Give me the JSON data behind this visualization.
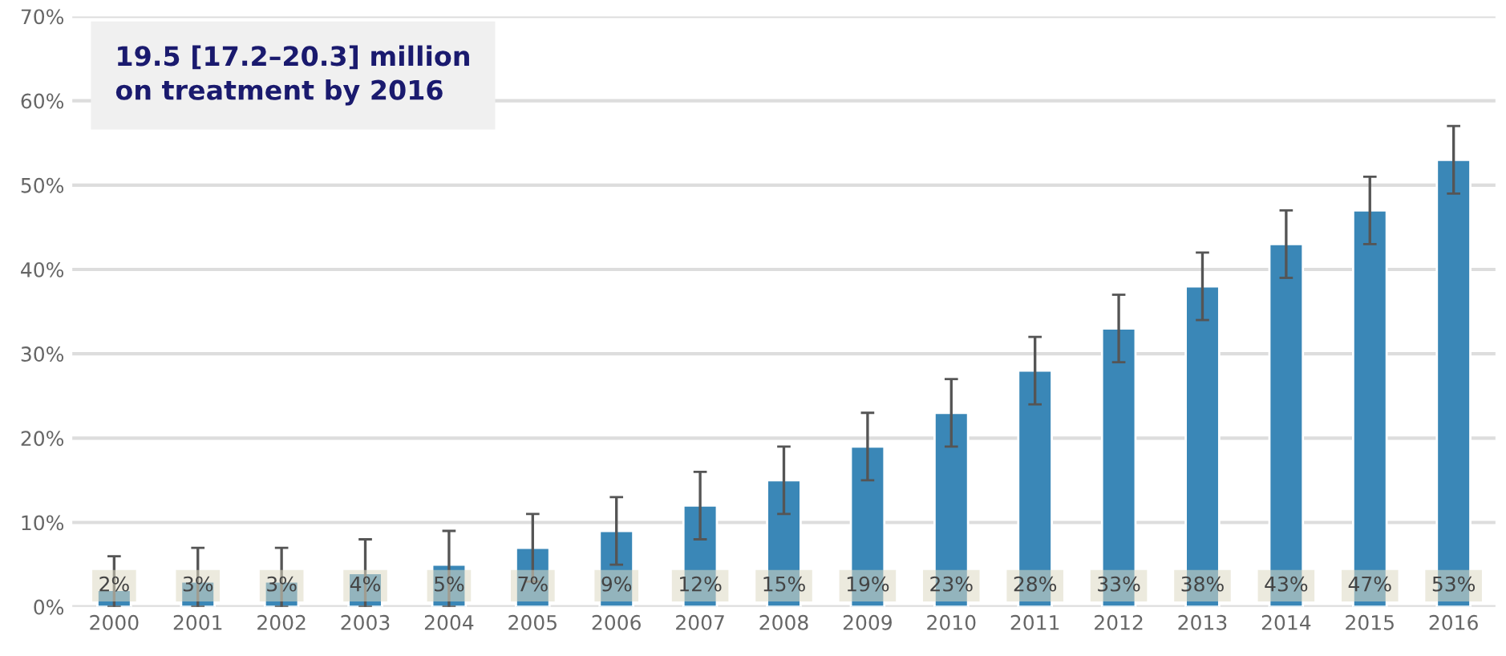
{
  "chart_data": {
    "type": "bar",
    "categories": [
      "2000",
      "2001",
      "2002",
      "2003",
      "2004",
      "2005",
      "2006",
      "2007",
      "2008",
      "2009",
      "2010",
      "2011",
      "2012",
      "2013",
      "2014",
      "2015",
      "2016"
    ],
    "values": [
      2,
      3,
      3,
      4,
      5,
      7,
      9,
      12,
      15,
      19,
      23,
      28,
      33,
      38,
      43,
      47,
      53
    ],
    "value_labels": [
      "2%",
      "3%",
      "3%",
      "4%",
      "5%",
      "7%",
      "9%",
      "12%",
      "15%",
      "19%",
      "23%",
      "28%",
      "33%",
      "38%",
      "43%",
      "47%",
      "53%"
    ],
    "errors": [
      [
        0,
        6
      ],
      [
        0,
        7
      ],
      [
        0,
        7
      ],
      [
        0,
        8
      ],
      [
        0,
        9
      ],
      [
        3,
        11
      ],
      [
        5,
        13
      ],
      [
        8,
        16
      ],
      [
        11,
        19
      ],
      [
        15,
        23
      ],
      [
        19,
        27
      ],
      [
        24,
        32
      ],
      [
        29,
        37
      ],
      [
        34,
        42
      ],
      [
        39,
        47
      ],
      [
        43,
        51
      ],
      [
        49,
        57
      ]
    ],
    "color": "#3a87b7",
    "ylim": [
      0,
      70
    ],
    "yticks": [
      {
        "value": 0,
        "label": "0%"
      },
      {
        "value": 10,
        "label": "10%"
      },
      {
        "value": 20,
        "label": "20%"
      },
      {
        "value": 30,
        "label": "30%"
      },
      {
        "value": 40,
        "label": "40%"
      },
      {
        "value": 50,
        "label": "50%"
      },
      {
        "value": 60,
        "label": "60%"
      },
      {
        "value": 70,
        "label": "70%"
      }
    ],
    "grid": "y",
    "annotations": [
      "19.5 [17.2–20.3] million\non treatment by 2016"
    ]
  }
}
